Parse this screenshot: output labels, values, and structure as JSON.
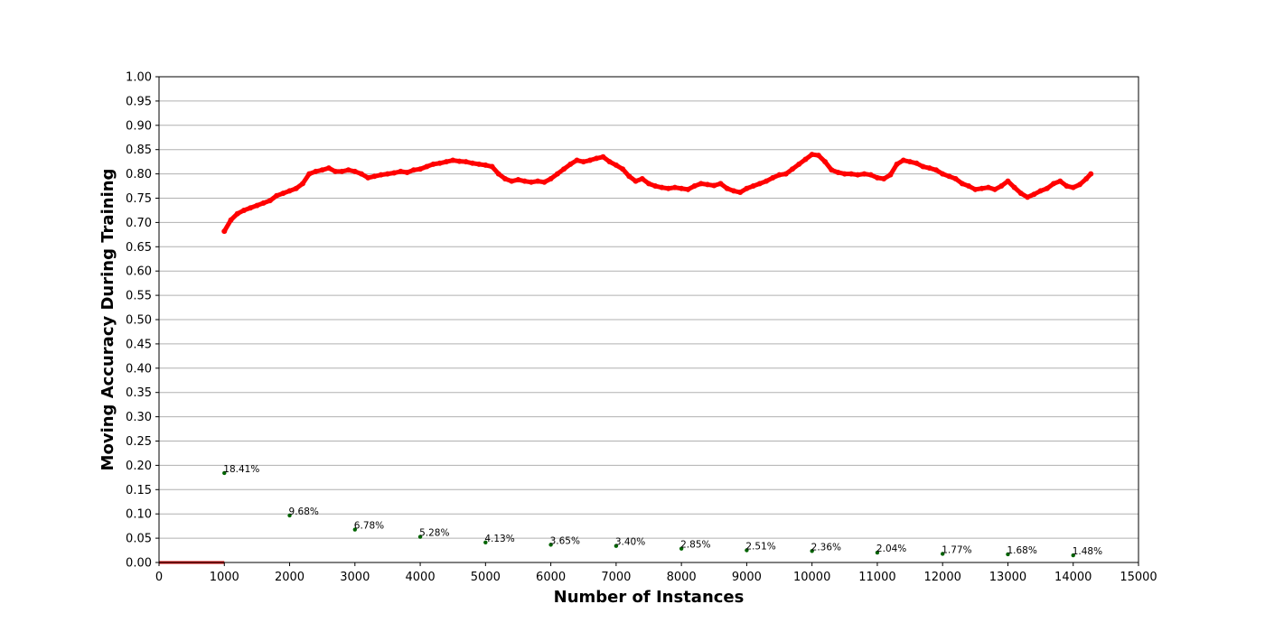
{
  "chart_data": {
    "type": "scatter",
    "xlabel": "Number of Instances",
    "ylabel": "Moving Accuracy During Training",
    "xlim": [
      0,
      15000
    ],
    "ylim": [
      0,
      1.0
    ],
    "x_ticks": [
      "0",
      "1000",
      "2000",
      "3000",
      "4000",
      "5000",
      "6000",
      "7000",
      "8000",
      "9000",
      "10000",
      "11000",
      "12000",
      "13000",
      "14000",
      "15000"
    ],
    "y_ticks": [
      "0.00",
      "0.05",
      "0.10",
      "0.15",
      "0.20",
      "0.25",
      "0.30",
      "0.35",
      "0.40",
      "0.45",
      "0.50",
      "0.55",
      "0.60",
      "0.65",
      "0.70",
      "0.75",
      "0.80",
      "0.85",
      "0.90",
      "0.95",
      "1.00"
    ],
    "grid": "horizontal",
    "series": [
      {
        "color": "#ff0000",
        "style": "thick-markers",
        "x": [
          1000,
          1100,
          1200,
          1300,
          1400,
          1500,
          1600,
          1700,
          1800,
          1900,
          2000,
          2100,
          2200,
          2300,
          2400,
          2500,
          2600,
          2700,
          2800,
          2900,
          3000,
          3100,
          3200,
          3300,
          3400,
          3500,
          3600,
          3700,
          3800,
          3900,
          4000,
          4100,
          4200,
          4300,
          4400,
          4500,
          4600,
          4700,
          4800,
          4900,
          5000,
          5100,
          5200,
          5300,
          5400,
          5500,
          5600,
          5700,
          5800,
          5900,
          6000,
          6100,
          6200,
          6300,
          6400,
          6500,
          6600,
          6700,
          6800,
          6900,
          7000,
          7100,
          7200,
          7300,
          7400,
          7500,
          7600,
          7700,
          7800,
          7900,
          8000,
          8100,
          8200,
          8300,
          8400,
          8500,
          8600,
          8700,
          8800,
          8900,
          9000,
          9100,
          9200,
          9300,
          9400,
          9500,
          9600,
          9700,
          9800,
          9900,
          10000,
          10100,
          10200,
          10300,
          10400,
          10500,
          10600,
          10700,
          10800,
          10900,
          11000,
          11100,
          11200,
          11300,
          11400,
          11500,
          11600,
          11700,
          11800,
          11900,
          12000,
          12100,
          12200,
          12300,
          12400,
          12500,
          12600,
          12700,
          12800,
          12900,
          13000,
          13100,
          13200,
          13300,
          13400,
          13500,
          13600,
          13700,
          13800,
          13900,
          14000,
          14100,
          14200,
          14270
        ],
        "y": [
          0.682,
          0.705,
          0.718,
          0.725,
          0.73,
          0.735,
          0.74,
          0.745,
          0.755,
          0.76,
          0.765,
          0.77,
          0.78,
          0.8,
          0.805,
          0.808,
          0.812,
          0.805,
          0.805,
          0.808,
          0.805,
          0.8,
          0.792,
          0.795,
          0.798,
          0.8,
          0.802,
          0.805,
          0.803,
          0.808,
          0.81,
          0.815,
          0.82,
          0.822,
          0.825,
          0.828,
          0.826,
          0.825,
          0.822,
          0.82,
          0.818,
          0.815,
          0.8,
          0.79,
          0.785,
          0.788,
          0.785,
          0.783,
          0.785,
          0.783,
          0.79,
          0.8,
          0.81,
          0.82,
          0.828,
          0.825,
          0.828,
          0.832,
          0.835,
          0.825,
          0.818,
          0.81,
          0.795,
          0.785,
          0.79,
          0.78,
          0.775,
          0.772,
          0.77,
          0.772,
          0.77,
          0.768,
          0.775,
          0.78,
          0.778,
          0.776,
          0.78,
          0.77,
          0.765,
          0.762,
          0.77,
          0.775,
          0.78,
          0.785,
          0.792,
          0.798,
          0.8,
          0.81,
          0.82,
          0.83,
          0.84,
          0.838,
          0.825,
          0.808,
          0.803,
          0.8,
          0.8,
          0.798,
          0.8,
          0.798,
          0.792,
          0.79,
          0.798,
          0.82,
          0.828,
          0.825,
          0.822,
          0.815,
          0.812,
          0.808,
          0.8,
          0.795,
          0.79,
          0.78,
          0.775,
          0.768,
          0.77,
          0.772,
          0.768,
          0.775,
          0.785,
          0.772,
          0.76,
          0.752,
          0.758,
          0.765,
          0.77,
          0.78,
          0.785,
          0.775,
          0.772,
          0.778,
          0.79,
          0.8
        ]
      },
      {
        "color": "#006400",
        "style": "points",
        "x": [
          1000,
          2000,
          3000,
          4000,
          5000,
          6000,
          7000,
          8000,
          9000,
          10000,
          11000,
          12000,
          13000,
          14000
        ],
        "y": [
          0.1841,
          0.0968,
          0.0678,
          0.0528,
          0.0413,
          0.0365,
          0.034,
          0.0285,
          0.0251,
          0.0236,
          0.0204,
          0.0177,
          0.0168,
          0.0148
        ],
        "labels": [
          "18.41%",
          "9.68%",
          "6.78%",
          "5.28%",
          "4.13%",
          "3.65%",
          "3.40%",
          "2.85%",
          "2.51%",
          "2.36%",
          "2.04%",
          "1.77%",
          "1.68%",
          "1.48%"
        ]
      },
      {
        "color": "#cc0000",
        "style": "baseline-segment",
        "x": [
          0,
          1000
        ],
        "y": [
          0,
          0
        ]
      }
    ]
  }
}
